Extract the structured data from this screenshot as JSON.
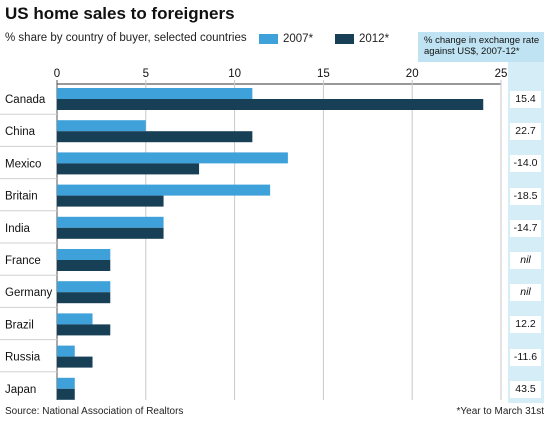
{
  "title": "US home sales to foreigners",
  "subtitle": "% share by country of buyer, selected countries",
  "source": "Source: National Association of Realtors",
  "footnote": "*Year to March 31st",
  "side_header": "% change in exchange rate against US$, 2007-12*",
  "colors": {
    "series_2007": "#3ea1da",
    "series_2012": "#173f56",
    "side_bg": "#d4edf7",
    "side_header_bg": "#bfe3f2"
  },
  "chart_data": {
    "type": "bar",
    "orientation": "horizontal",
    "title": "US home sales to foreigners",
    "subtitle": "% share by country of buyer, selected countries",
    "categories": [
      "Canada",
      "China",
      "Mexico",
      "Britain",
      "India",
      "France",
      "Germany",
      "Brazil",
      "Russia",
      "Japan"
    ],
    "series": [
      {
        "name": "2007*",
        "values": [
          11,
          5,
          13,
          12,
          6,
          3,
          3,
          2,
          1,
          1
        ]
      },
      {
        "name": "2012*",
        "values": [
          24,
          11,
          8,
          6,
          6,
          3,
          3,
          3,
          2,
          1
        ]
      }
    ],
    "xlim": [
      0,
      25
    ],
    "xticks": [
      0,
      5,
      10,
      15,
      20,
      25
    ],
    "grid": true,
    "legend": "top",
    "exchange_rate_change": [
      "15.4",
      "22.7",
      "-14.0",
      "-18.5",
      "-14.7",
      "nil",
      "nil",
      "12.2",
      "-11.6",
      "43.5"
    ]
  }
}
